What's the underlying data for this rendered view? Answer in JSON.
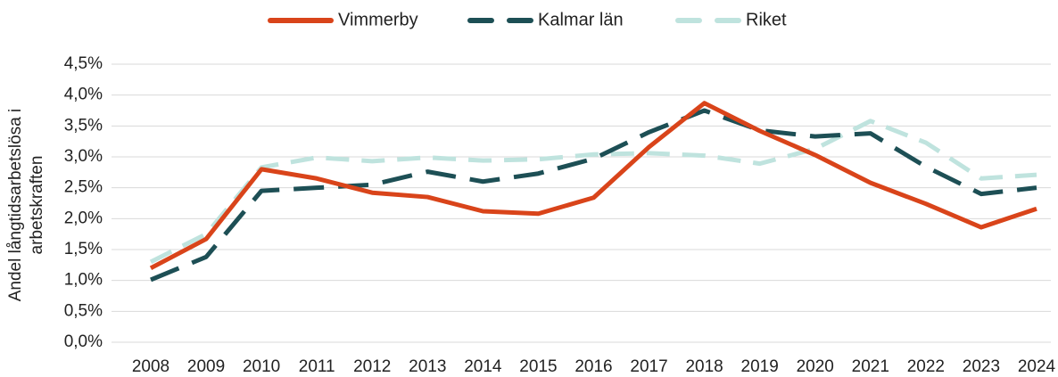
{
  "chart_data": {
    "type": "line",
    "y_label": [
      "Andel långtidsarbetslösa i",
      "arbetskraften"
    ],
    "categories": [
      "2008",
      "2009",
      "2010",
      "2011",
      "2012",
      "2013",
      "2014",
      "2015",
      "2016",
      "2017",
      "2018",
      "2019",
      "2020",
      "2021",
      "2022",
      "2023",
      "2024"
    ],
    "series": [
      {
        "name": "Vimmerby",
        "color": "#d9441a",
        "dash": "none",
        "values": [
          1.2,
          1.67,
          2.8,
          2.65,
          2.42,
          2.35,
          2.12,
          2.08,
          2.34,
          3.16,
          3.87,
          3.42,
          3.03,
          2.58,
          2.24,
          1.86,
          2.16
        ]
      },
      {
        "name": "Kalmar län",
        "color": "#1d4f55",
        "dash": "34 16",
        "values": [
          1.01,
          1.38,
          2.45,
          2.5,
          2.55,
          2.76,
          2.6,
          2.73,
          2.97,
          3.4,
          3.75,
          3.43,
          3.33,
          3.38,
          2.84,
          2.4,
          2.5
        ]
      },
      {
        "name": "Riket",
        "color": "#bfe3de",
        "dash": "26 14",
        "values": [
          1.3,
          1.75,
          2.83,
          2.99,
          2.93,
          2.99,
          2.94,
          2.96,
          3.04,
          3.06,
          3.02,
          2.89,
          3.13,
          3.58,
          3.23,
          2.65,
          2.71
        ]
      }
    ],
    "ylim": [
      0,
      4.5
    ],
    "yticks": [
      {
        "value": 0,
        "label": "0,0%"
      },
      {
        "value": 0.5,
        "label": "0,5%"
      },
      {
        "value": 1,
        "label": "1,0%"
      },
      {
        "value": 1.5,
        "label": "1,5%"
      },
      {
        "value": 2,
        "label": "2,0%"
      },
      {
        "value": 2.5,
        "label": "2,5%"
      },
      {
        "value": 3,
        "label": "3,0%"
      },
      {
        "value": 3.5,
        "label": "3,5%"
      },
      {
        "value": 4,
        "label": "4,0%"
      },
      {
        "value": 4.5,
        "label": "4,5%"
      }
    ],
    "grid": true,
    "legend": "top"
  }
}
